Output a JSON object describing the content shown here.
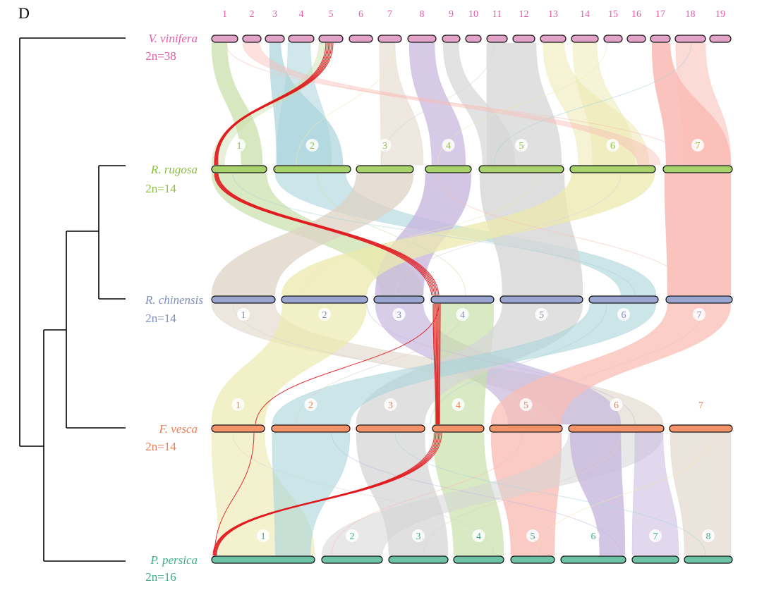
{
  "panel_label": "D",
  "colors": {
    "tree": "#000000",
    "bar_edge": "#111111",
    "highlight": "#e0161c",
    "palette": [
      "#c9dfaa",
      "#a9d3db",
      "#ddd2c4",
      "#c8b8de",
      "#d6d6d6",
      "#ece9ae",
      "#f9bdb6"
    ]
  },
  "species": [
    {
      "name": "V. vinifera",
      "count": "2n=38",
      "label_color": "#e55aa8",
      "bar_color": "#e3a2c7",
      "num_color": "#e55aa8",
      "numbers_above": true,
      "chromosomes": [
        "1",
        "2",
        "3",
        "4",
        "5",
        "6",
        "7",
        "8",
        "9",
        "10",
        "11",
        "12",
        "13",
        "14",
        "15",
        "16",
        "17",
        "18",
        "19"
      ]
    },
    {
      "name": "R. rugosa",
      "count": "2n=14",
      "label_color": "#8cbf3f",
      "bar_color": "#a8d26a",
      "num_color": "#8cbf3f",
      "numbers_above": true,
      "chromosomes": [
        "1",
        "2",
        "3",
        "4",
        "5",
        "6",
        "7"
      ]
    },
    {
      "name": "R. chinensis",
      "count": "2n=14",
      "label_color": "#7f8fbf",
      "bar_color": "#9aa6cf",
      "num_color": "#7f8fbf",
      "numbers_above": false,
      "chromosomes": [
        "1",
        "2",
        "3",
        "4",
        "5",
        "6",
        "7"
      ]
    },
    {
      "name": "F. vesca",
      "count": "2n=14",
      "label_color": "#ef7d4f",
      "bar_color": "#f2936a",
      "num_color": "#ef7d4f",
      "numbers_above": true,
      "chromosomes": [
        "1",
        "2",
        "3",
        "4",
        "5",
        "6",
        "7"
      ]
    },
    {
      "name": "P. persica",
      "count": "2n=16",
      "label_color": "#3dae8b",
      "bar_color": "#6cc2a3",
      "num_color": "#3dae8b",
      "numbers_above": true,
      "chromosomes": [
        "1",
        "2",
        "3",
        "4",
        "5",
        "6",
        "7",
        "8"
      ]
    }
  ]
}
